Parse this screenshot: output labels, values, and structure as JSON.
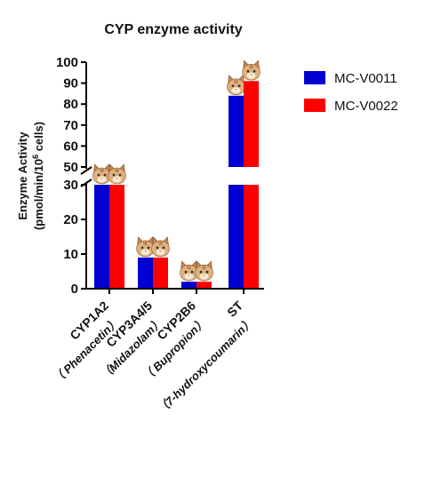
{
  "chart_data": {
    "type": "bar",
    "title": "CYP enzyme activity",
    "ylabel_line1": "Enzyme Activity",
    "ylabel_line2_prefix": "(pmol/min/10",
    "ylabel_line2_sup": "6",
    "ylabel_line2_suffix": " cells)",
    "categories": [
      "CYP1A2",
      "CYP3A4/5",
      "CYP2B6",
      "ST"
    ],
    "category_substrates": [
      "（ Phenacetin）",
      "（Midazolam）",
      "（ Bupropion）",
      "（7-hydroxycoumarin）"
    ],
    "series": [
      {
        "name": "MC-V0011",
        "color": "#0000d0",
        "values": [
          30,
          9,
          2,
          84
        ]
      },
      {
        "name": "MC-V0022",
        "color": "#ff0000",
        "values": [
          30,
          9,
          2,
          91
        ]
      }
    ],
    "axis_break": [
      30,
      50
    ],
    "ylim": [
      0,
      100
    ],
    "yticks_lower": [
      "0",
      "10",
      "20",
      "30"
    ],
    "yticks_upper": [
      "50",
      "60",
      "70",
      "80",
      "90",
      "100"
    ],
    "legend_position": "top-right",
    "marker_icon": "cat-face-icon"
  }
}
